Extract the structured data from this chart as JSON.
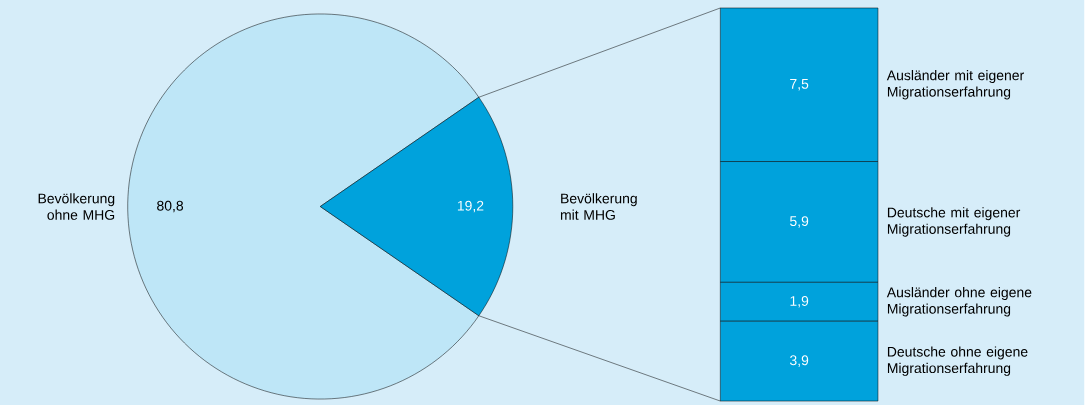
{
  "chart_data": [
    {
      "type": "pie",
      "categories": [
        "Bevölkerung ohne MHG",
        "Bevölkerung mit MHG"
      ],
      "values": [
        80.8,
        19.2
      ],
      "colors": [
        "#bee6f7",
        "#00a2dc"
      ],
      "value_labels": [
        "80,8",
        "19,2"
      ]
    },
    {
      "type": "bar",
      "stacked": true,
      "categories": [
        null
      ],
      "series": [
        {
          "name": "Deutsche ohne eigene Migrationserfahrung",
          "color": "#00a2dc",
          "values": [
            3.9
          ],
          "value_labels": [
            "3,9"
          ]
        },
        {
          "name": "Ausländer ohne eigene Migrationserfahrung",
          "color": "#00a2dc",
          "values": [
            1.9
          ],
          "value_labels": [
            "1,9"
          ]
        },
        {
          "name": "Deutsche mit eigener Migrationserfahrung",
          "color": "#00a2dc",
          "values": [
            5.9
          ],
          "value_labels": [
            "5,9"
          ]
        },
        {
          "name": "Ausländer mit eigener Migrationserfahrung",
          "color": "#00a2dc",
          "values": [
            7.5
          ],
          "value_labels": [
            "7,5"
          ]
        }
      ]
    }
  ]
}
